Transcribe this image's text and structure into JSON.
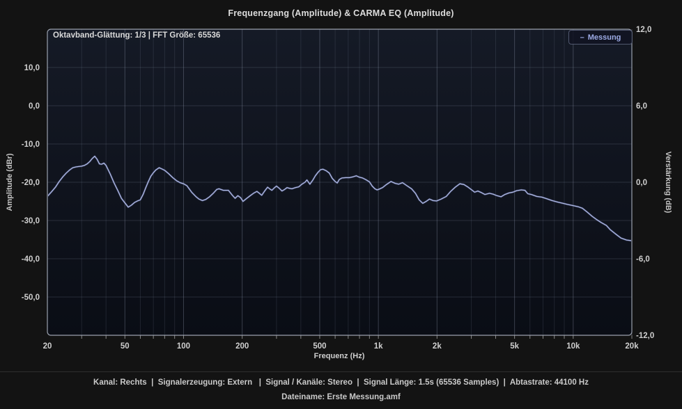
{
  "title": "Frequenzgang (Amplitude) & CARMA EQ (Amplitude)",
  "plot": {
    "info_label": "Oktavband-Glättung: 1/3 | FFT Größe: 65536",
    "legend": {
      "swatch": "–",
      "label": "Messung",
      "color": "#9dabe6"
    }
  },
  "axes": {
    "left": {
      "title": "Amplitude (dBr)",
      "ticks": [
        "10,0",
        "0,0",
        "-10,0",
        "-20,0",
        "-30,0",
        "-40,0",
        "-50,0"
      ],
      "tick_values": [
        10,
        0,
        -10,
        -20,
        -30,
        -40,
        -50
      ],
      "range": [
        20,
        -60
      ]
    },
    "right": {
      "title": "Verstärkung (dB)",
      "ticks": [
        "12,0",
        "6,0",
        "0,0",
        "-6,0",
        "-12,0"
      ],
      "tick_values": [
        12,
        6,
        0,
        -6,
        -12
      ],
      "range": [
        12,
        -12
      ]
    },
    "x": {
      "title": "Frequenz (Hz)",
      "ticks": [
        "20",
        "50",
        "100",
        "200",
        "500",
        "1k",
        "2k",
        "5k",
        "10k",
        "20k"
      ],
      "tick_values": [
        20,
        50,
        100,
        200,
        500,
        1000,
        2000,
        5000,
        10000,
        20000
      ],
      "range": [
        20,
        20000
      ],
      "scale": "log"
    }
  },
  "chart_data": {
    "type": "line",
    "title": "Frequenzgang (Amplitude) & CARMA EQ (Amplitude)",
    "xlabel": "Frequenz (Hz)",
    "ylabel_left": "Amplitude (dBr)",
    "ylabel_right": "Verstärkung (dB)",
    "x_scale": "log",
    "xlim": [
      20,
      20000
    ],
    "ylim_left": [
      -60,
      20
    ],
    "ylim_right": [
      -12,
      12
    ],
    "grid": true,
    "legend_position": "top-right",
    "series": [
      {
        "name": "Messung",
        "color": "#aeb8e2",
        "unit": "dBr",
        "x": [
          20,
          21,
          22,
          23,
          24,
          25,
          26,
          27,
          28,
          29,
          30,
          31,
          32,
          33,
          34,
          35,
          36,
          37,
          38,
          39,
          40,
          42,
          44,
          46,
          48,
          50,
          52,
          54,
          56,
          58,
          60,
          62,
          64,
          66,
          68,
          70,
          72,
          75,
          78,
          80,
          84,
          88,
          92,
          96,
          100,
          104,
          110,
          116,
          120,
          125,
          130,
          136,
          142,
          148,
          152,
          160,
          170,
          178,
          184,
          190,
          196,
          202,
          210,
          220,
          230,
          238,
          245,
          252,
          260,
          270,
          278,
          284,
          292,
          300,
          310,
          320,
          330,
          340,
          350,
          360,
          375,
          390,
          405,
          420,
          430,
          445,
          460,
          475,
          490,
          505,
          520,
          540,
          560,
          580,
          600,
          615,
          630,
          650,
          680,
          710,
          740,
          770,
          800,
          830,
          860,
          900,
          930,
          960,
          985,
          1010,
          1050,
          1100,
          1160,
          1220,
          1270,
          1330,
          1400,
          1480,
          1550,
          1620,
          1690,
          1760,
          1830,
          1910,
          1990,
          2100,
          2230,
          2350,
          2480,
          2620,
          2750,
          2890,
          3050,
          3120,
          3240,
          3380,
          3520,
          3720,
          3880,
          4060,
          4260,
          4460,
          4680,
          4900,
          5130,
          5420,
          5650,
          5850,
          6100,
          6500,
          6900,
          7300,
          7800,
          8350,
          8850,
          9350,
          10000,
          10600,
          11150,
          11800,
          12500,
          13150,
          13900,
          14800,
          15500,
          16500,
          17600,
          18800,
          20000
        ],
        "y": [
          -23.7,
          -22.5,
          -21.3,
          -19.8,
          -18.6,
          -17.6,
          -16.8,
          -16.2,
          -16.0,
          -15.9,
          -15.8,
          -15.6,
          -15.2,
          -14.6,
          -13.8,
          -13.2,
          -14.0,
          -15.2,
          -15.3,
          -15.0,
          -15.6,
          -17.8,
          -20.2,
          -22.2,
          -24.2,
          -25.4,
          -26.5,
          -26.0,
          -25.3,
          -24.9,
          -24.6,
          -23.2,
          -21.4,
          -19.8,
          -18.4,
          -17.5,
          -16.8,
          -16.2,
          -16.6,
          -16.9,
          -17.8,
          -18.8,
          -19.6,
          -20.1,
          -20.4,
          -20.9,
          -22.6,
          -23.8,
          -24.4,
          -24.8,
          -24.5,
          -23.8,
          -22.9,
          -21.9,
          -21.7,
          -22.1,
          -22.1,
          -23.4,
          -24.2,
          -23.5,
          -24.0,
          -25.0,
          -24.3,
          -23.5,
          -22.8,
          -22.4,
          -22.9,
          -23.4,
          -22.4,
          -21.3,
          -21.8,
          -22.1,
          -21.5,
          -21.0,
          -21.6,
          -22.3,
          -21.9,
          -21.4,
          -21.6,
          -21.7,
          -21.4,
          -21.2,
          -20.5,
          -20.0,
          -19.4,
          -20.5,
          -19.5,
          -18.3,
          -17.4,
          -16.7,
          -16.6,
          -17.0,
          -17.6,
          -19.0,
          -19.8,
          -20.2,
          -19.3,
          -18.9,
          -18.8,
          -18.8,
          -18.6,
          -18.3,
          -18.7,
          -18.9,
          -19.3,
          -19.9,
          -21.0,
          -21.7,
          -22.0,
          -21.8,
          -21.4,
          -20.6,
          -19.8,
          -20.3,
          -20.5,
          -20.1,
          -20.9,
          -21.7,
          -22.9,
          -24.6,
          -25.5,
          -25.0,
          -24.4,
          -24.8,
          -24.9,
          -24.4,
          -23.7,
          -22.4,
          -21.3,
          -20.4,
          -20.6,
          -21.3,
          -22.2,
          -22.6,
          -22.3,
          -22.7,
          -23.2,
          -22.9,
          -23.1,
          -23.5,
          -23.8,
          -23.2,
          -22.8,
          -22.6,
          -22.2,
          -22.0,
          -22.1,
          -23.0,
          -23.2,
          -23.7,
          -23.9,
          -24.3,
          -24.8,
          -25.2,
          -25.5,
          -25.8,
          -26.1,
          -26.4,
          -26.8,
          -27.8,
          -28.9,
          -29.7,
          -30.5,
          -31.3,
          -32.4,
          -33.5,
          -34.6,
          -35.1,
          -35.3
        ]
      }
    ]
  },
  "status_bar": {
    "line1": "Kanal: Rechts  |  Signalerzeugung: Extern   |  Signal / Kanäle: Stereo  |  Signal Länge: 1.5s (65536 Samples)  |  Abtastrate: 44100 Hz",
    "line2": "Dateiname: Erste Messung.amf"
  },
  "colors": {
    "background": "#131313",
    "plot_bg_top": "#151a26",
    "plot_bg_bottom": "#0a0d15",
    "plot_border": "#9aa0ad",
    "grid": "#3a4152",
    "curve": "#aeb8e2",
    "text": "#cfcfcf"
  }
}
